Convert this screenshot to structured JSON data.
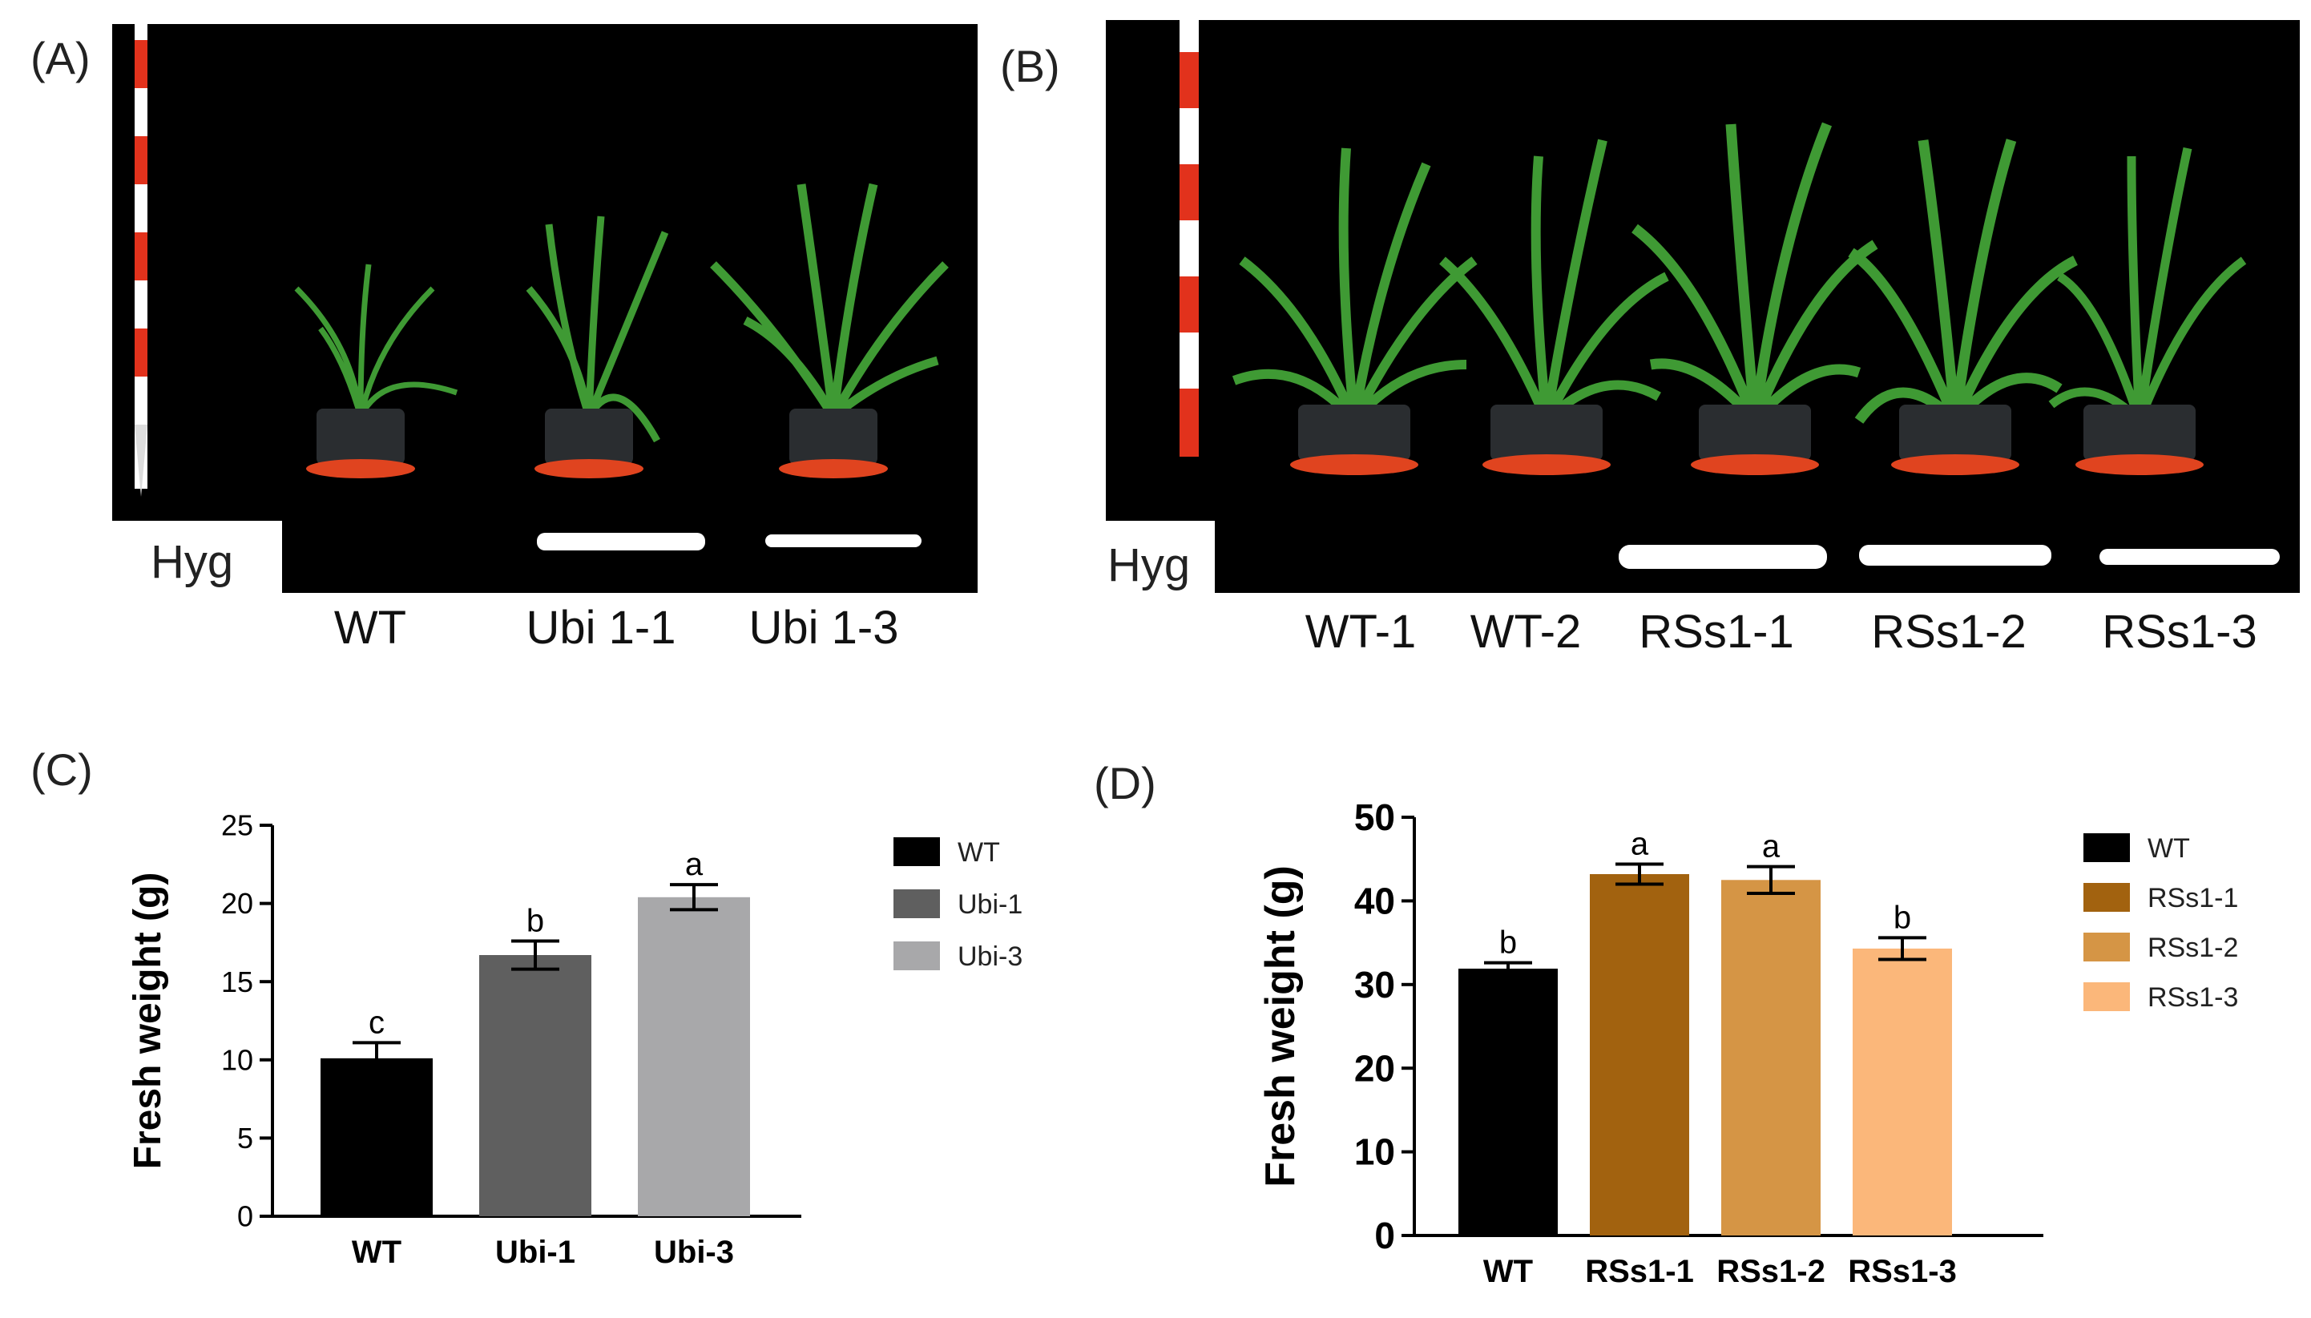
{
  "panels": {
    "A": {
      "label": "(A)",
      "gel_label": "Hyg",
      "lanes": [
        "WT",
        "Ubi 1-1",
        "Ubi 1-3"
      ]
    },
    "B": {
      "label": "(B)",
      "gel_label": "Hyg",
      "lanes": [
        "WT-1",
        "WT-2",
        "RSs1-1",
        "RSs1-2",
        "RSs1-3"
      ]
    },
    "C": {
      "label": "(C)"
    },
    "D": {
      "label": "(D)"
    }
  },
  "colors": {
    "photo_bg": "#000000",
    "plant": "#3f9a34",
    "pot": "#2a2d30",
    "saucer": "#e0441f",
    "band": "#ffffff"
  },
  "chart_data": [
    {
      "type": "bar",
      "panel": "C",
      "categories": [
        "WT",
        "Ubi-1",
        "Ubi-3"
      ],
      "values": [
        10.1,
        16.7,
        20.4
      ],
      "errors": [
        1.0,
        0.9,
        0.8
      ],
      "letters": [
        "c",
        "b",
        "a"
      ],
      "colors": [
        "#000000",
        "#5f5f5f",
        "#a8a8aa"
      ],
      "legend": [
        "WT",
        "Ubi-1",
        "Ubi-3"
      ],
      "ylabel": "Fresh weight (g)",
      "xlabel": "",
      "ylim": [
        0,
        25
      ],
      "yticks": [
        0,
        5,
        10,
        15,
        20,
        25
      ]
    },
    {
      "type": "bar",
      "panel": "D",
      "categories": [
        "WT",
        "RSs1-1",
        "RSs1-2",
        "RSs1-3"
      ],
      "values": [
        31.9,
        43.2,
        42.5,
        34.3
      ],
      "errors": [
        0.7,
        1.2,
        1.6,
        1.3
      ],
      "letters": [
        "b",
        "a",
        "a",
        "b"
      ],
      "colors": [
        "#000000",
        "#a2620f",
        "#d59545",
        "#fbb77a"
      ],
      "legend": [
        "WT",
        "RSs1-1",
        "RSs1-2",
        "RSs1-3"
      ],
      "ylabel": "Fresh weight (g)",
      "xlabel": "",
      "ylim": [
        0,
        50
      ],
      "yticks": [
        0,
        10,
        20,
        30,
        40,
        50
      ]
    }
  ]
}
